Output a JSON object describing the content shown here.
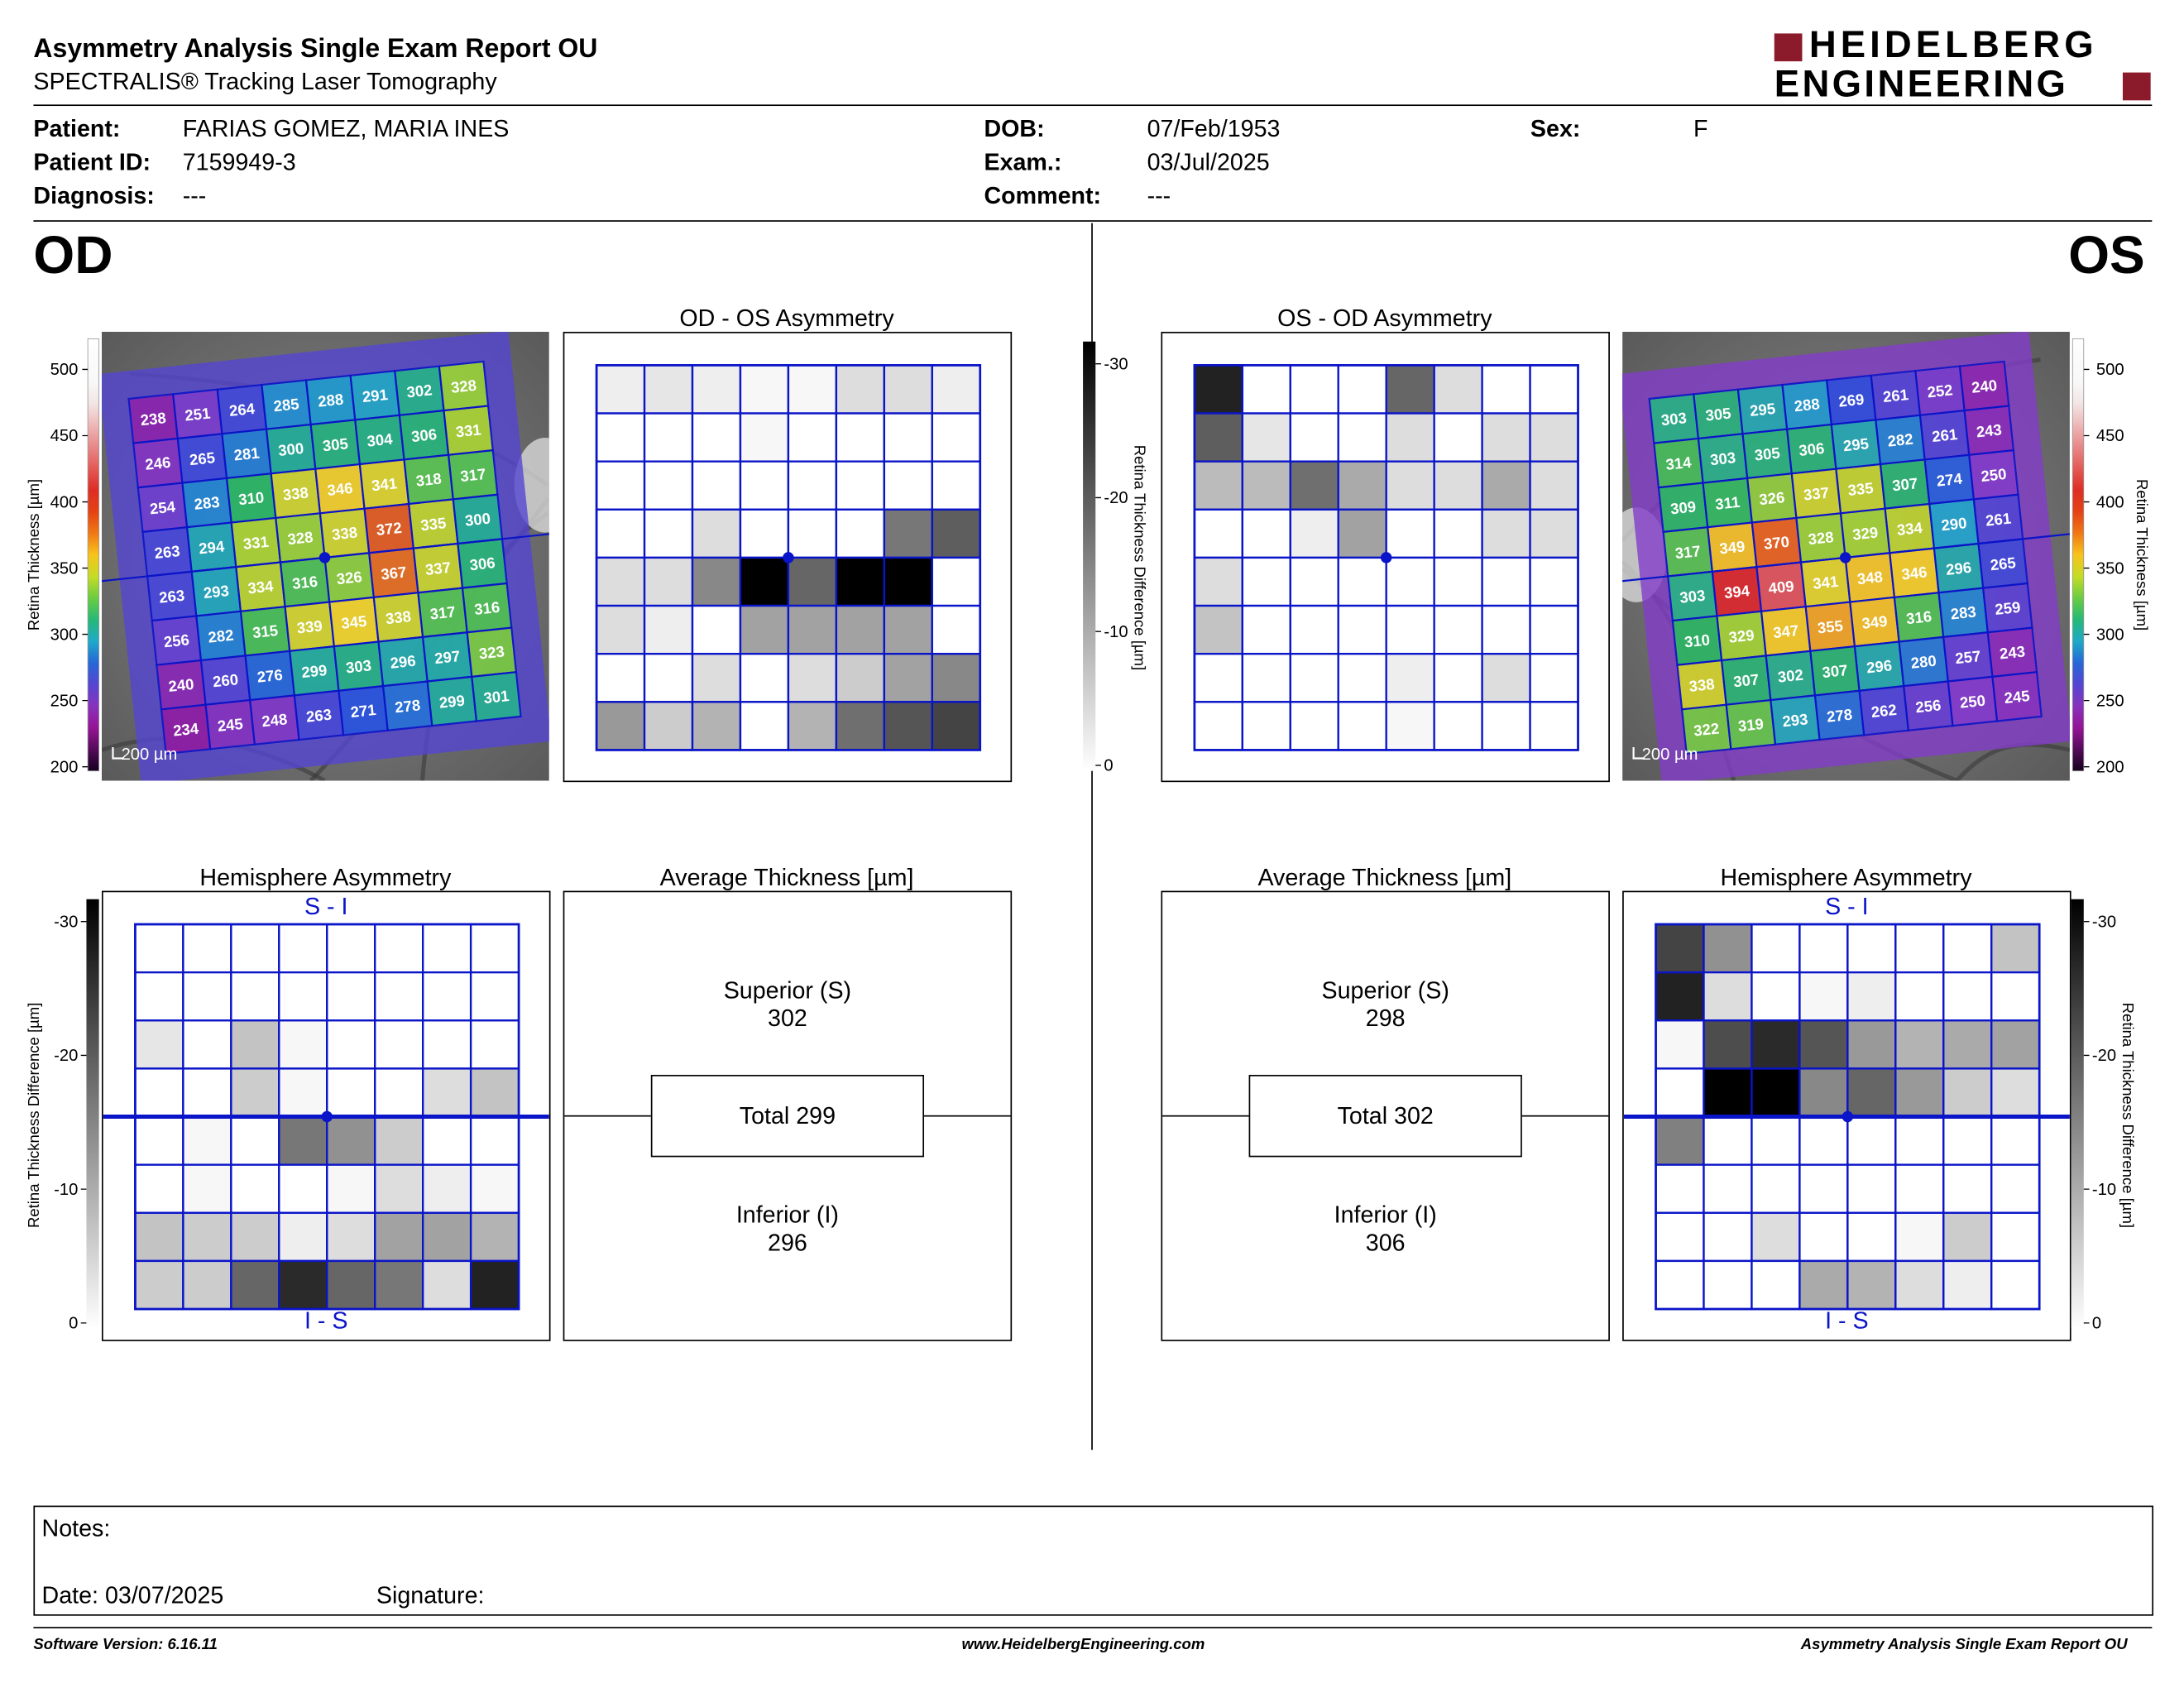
{
  "header": {
    "title": "Asymmetry Analysis Single Exam Report OU",
    "subtitle": "SPECTRALIS® Tracking Laser Tomography",
    "logo_line1": "HEIDELBERG",
    "logo_line2": "ENGINEERING"
  },
  "patient": {
    "patient_label": "Patient:",
    "patient_value": "FARIAS GOMEZ, MARIA INES",
    "id_label": "Patient ID:",
    "id_value": "7159949-3",
    "diag_label": "Diagnosis:",
    "diag_value": "---",
    "dob_label": "DOB:",
    "dob_value": "07/Feb/1953",
    "exam_label": "Exam.:",
    "exam_value": "03/Jul/2025",
    "comment_label": "Comment:",
    "comment_value": "---",
    "sex_label": "Sex:",
    "sex_value": "F"
  },
  "od": {
    "eye_label": "OD",
    "asym_title": "OD - OS Asymmetry",
    "hemi_title": "Hemisphere Asymmetry",
    "avg_title": "Average Thickness [µm]",
    "scale_label": "200 µm",
    "superior_label": "Superior (S)",
    "superior_value": "302",
    "total_label": "Total 299",
    "inferior_label": "Inferior (I)",
    "inferior_value": "296",
    "hemi_top": "S - I",
    "hemi_bottom": "I - S",
    "thickness_grid": [
      [
        238,
        251,
        264,
        285,
        288,
        291,
        302,
        328
      ],
      [
        246,
        265,
        281,
        300,
        305,
        304,
        306,
        331
      ],
      [
        254,
        283,
        310,
        338,
        346,
        341,
        318,
        317
      ],
      [
        263,
        294,
        331,
        328,
        338,
        372,
        335,
        300
      ],
      [
        263,
        293,
        334,
        316,
        326,
        367,
        337,
        306
      ],
      [
        256,
        282,
        315,
        339,
        345,
        338,
        317,
        316
      ],
      [
        240,
        260,
        276,
        299,
        303,
        296,
        297,
        323
      ],
      [
        234,
        245,
        248,
        263,
        271,
        278,
        299,
        301
      ]
    ],
    "asym_grid": [
      [
        2,
        3,
        2,
        1,
        1,
        4,
        4,
        2
      ],
      [
        0,
        0,
        0,
        1,
        0,
        0,
        0,
        0
      ],
      [
        0,
        0,
        0,
        0,
        0,
        0,
        0,
        0
      ],
      [
        0,
        0,
        4,
        0,
        0,
        0,
        16,
        19
      ],
      [
        4,
        4,
        14,
        30,
        18,
        30,
        30,
        0
      ],
      [
        4,
        2,
        0,
        11,
        11,
        11,
        11,
        0
      ],
      [
        0,
        0,
        4,
        0,
        4,
        6,
        11,
        14
      ],
      [
        12,
        6,
        9,
        0,
        9,
        17,
        20,
        22
      ]
    ],
    "hemi_grid": [
      [
        0,
        0,
        0,
        0,
        0,
        0,
        0,
        0
      ],
      [
        0,
        0,
        0,
        0,
        0,
        0,
        0,
        0
      ],
      [
        3,
        0,
        7,
        1,
        0,
        0,
        0,
        0
      ],
      [
        0,
        0,
        6,
        1,
        0,
        0,
        4,
        7
      ],
      [
        0,
        1,
        0,
        16,
        13,
        6,
        0,
        0
      ],
      [
        0,
        1,
        0,
        0,
        1,
        4,
        2,
        1
      ],
      [
        7,
        6,
        6,
        2,
        4,
        11,
        11,
        9
      ],
      [
        6,
        6,
        18,
        25,
        18,
        16,
        4,
        26
      ]
    ]
  },
  "os": {
    "eye_label": "OS",
    "asym_title": "OS - OD Asymmetry",
    "hemi_title": "Hemisphere Asymmetry",
    "avg_title": "Average Thickness [µm]",
    "scale_label": "200 µm",
    "superior_label": "Superior (S)",
    "superior_value": "298",
    "total_label": "Total 302",
    "inferior_label": "Inferior (I)",
    "inferior_value": "306",
    "hemi_top": "S - I",
    "hemi_bottom": "I - S",
    "thickness_grid": [
      [
        303,
        305,
        295,
        288,
        269,
        261,
        252,
        240
      ],
      [
        314,
        303,
        305,
        306,
        295,
        282,
        261,
        243
      ],
      [
        309,
        311,
        326,
        337,
        335,
        307,
        274,
        250
      ],
      [
        317,
        349,
        370,
        328,
        329,
        334,
        290,
        261
      ],
      [
        303,
        394,
        409,
        341,
        348,
        346,
        296,
        265
      ],
      [
        310,
        329,
        347,
        355,
        349,
        316,
        283,
        259
      ],
      [
        338,
        307,
        302,
        307,
        296,
        280,
        257,
        243
      ],
      [
        322,
        319,
        293,
        278,
        262,
        256,
        250,
        245
      ]
    ],
    "asym_grid": [
      [
        26,
        0,
        0,
        0,
        18,
        4,
        0,
        0
      ],
      [
        19,
        3,
        0,
        0,
        4,
        0,
        4,
        4
      ],
      [
        8,
        8,
        17,
        10,
        4,
        4,
        10,
        4
      ],
      [
        0,
        0,
        2,
        11,
        0,
        0,
        4,
        4
      ],
      [
        4,
        0,
        0,
        0,
        0,
        0,
        0,
        0
      ],
      [
        7,
        0,
        0,
        0,
        0,
        0,
        0,
        0
      ],
      [
        0,
        0,
        0,
        0,
        2,
        0,
        4,
        0
      ],
      [
        0,
        0,
        0,
        0,
        1,
        0,
        0,
        0
      ]
    ],
    "hemi_grid": [
      [
        22,
        13,
        0,
        0,
        0,
        0,
        0,
        7
      ],
      [
        26,
        4,
        0,
        1,
        2,
        0,
        0,
        0
      ],
      [
        1,
        21,
        25,
        20,
        12,
        9,
        10,
        11
      ],
      [
        0,
        30,
        30,
        14,
        18,
        12,
        6,
        4
      ],
      [
        15,
        0,
        0,
        0,
        0,
        0,
        0,
        0
      ],
      [
        0,
        0,
        0,
        0,
        0,
        0,
        0,
        0
      ],
      [
        0,
        0,
        4,
        0,
        0,
        1,
        6,
        0
      ],
      [
        0,
        0,
        0,
        10,
        9,
        4,
        2,
        0
      ]
    ]
  },
  "colorbar": {
    "thickness_label": "Retina  Thickness [µm]",
    "thickness_ticks": [
      "500",
      "450",
      "400",
      "350",
      "300",
      "250",
      "200"
    ],
    "diff_label": "Retina Thickness Difference [µm]",
    "diff_ticks": [
      "-30",
      "-20",
      "-10",
      "0"
    ]
  },
  "notes": {
    "notes_label": "Notes:",
    "date_label": "Date: 03/07/2025",
    "signature_label": "Signature:"
  },
  "footer": {
    "software": "Software Version: 6.16.11",
    "website": "www.HeidelbergEngineering.com",
    "report": "Asymmetry Analysis Single Exam Report OU"
  },
  "colors": {
    "grid_line": "#0a14c8",
    "logo_red": "#8b1a2b",
    "text": "#000000"
  }
}
